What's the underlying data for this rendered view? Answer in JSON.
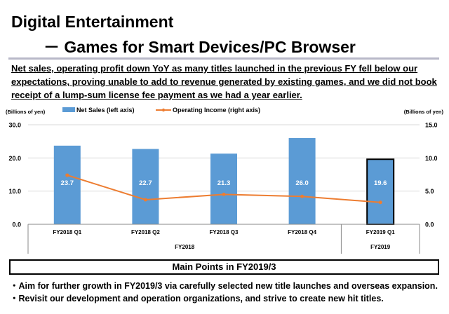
{
  "title": {
    "line1": "Digital Entertainment",
    "line2": "－ Games for Smart Devices/PC Browser"
  },
  "summary": "Net sales, operating profit down YoY as many titles launched in the previous FY fell below our expectations, proving unable to add to revenue generated by existing games, and we did not book receipt of a lump-sum license fee payment as we had a year earlier.",
  "main_points": {
    "heading": "Main Points in FY2019/3",
    "items": [
      "・Aim for further growth in FY2019/3 via carefully selected new title launches and overseas expansion.",
      "・Revisit our development and operation organizations, and strive to create new hit titles."
    ]
  },
  "chart_data": {
    "type": "bar",
    "categories": [
      "FY2018 Q1",
      "FY2018 Q2",
      "FY2018 Q3",
      "FY2018 Q4",
      "FY2019 Q1"
    ],
    "groups": [
      {
        "label": "FY2018",
        "count": 4
      },
      {
        "label": "FY2019",
        "count": 1
      }
    ],
    "series": [
      {
        "name": "Net Sales (left axis)",
        "type": "bar",
        "axis": "left",
        "values": [
          23.7,
          22.7,
          21.3,
          26.0,
          19.6
        ],
        "labels": [
          "23.7",
          "22.7",
          "21.3",
          "26.0",
          "19.6"
        ],
        "color": "#5b9bd5"
      },
      {
        "name": "Operating Income (right axis)",
        "type": "line",
        "axis": "right",
        "values": [
          7.4,
          3.7,
          4.5,
          4.2,
          3.3
        ],
        "color": "#ed7d31"
      }
    ],
    "ylabel_left": "(Billions of yen)",
    "ylabel_right": "(Billions of yen)",
    "ylim_left": [
      0,
      30
    ],
    "yticks_left": [
      "0.0",
      "10.0",
      "20.0",
      "30.0"
    ],
    "ylim_right": [
      0,
      15
    ],
    "yticks_right": [
      "0.0",
      "5.0",
      "10.0",
      "15.0"
    ],
    "highlighted_category": "FY2019 Q1",
    "grid": true,
    "legend": "top"
  }
}
